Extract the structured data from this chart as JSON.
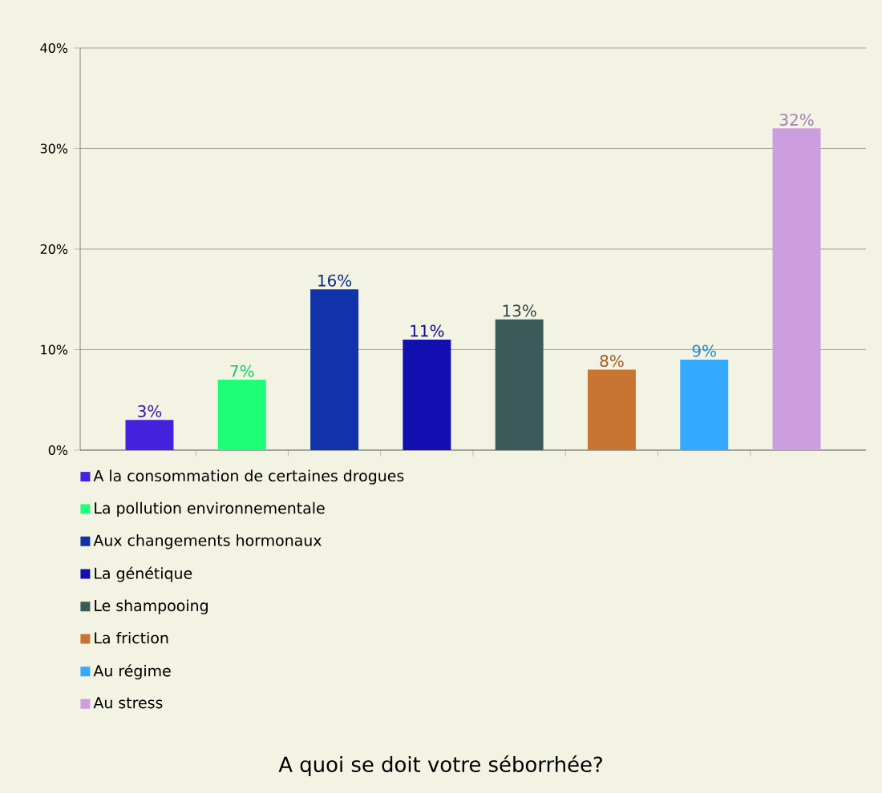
{
  "chart_data": {
    "type": "bar",
    "title": "A quoi se doit votre séborrhée?",
    "categories": [
      null,
      null,
      null,
      null,
      null,
      null,
      null,
      null
    ],
    "series": [
      {
        "name": "A la consommation de certaines drogues",
        "color": "#4422dd",
        "values": [
          3,
          null,
          null,
          null,
          null,
          null,
          null,
          null
        ],
        "value_labels": [
          "3%",
          null,
          null,
          null,
          null,
          null,
          null,
          null
        ]
      },
      {
        "name": "La pollution environnementale",
        "color": "#1cff77",
        "values": [
          null,
          7,
          null,
          null,
          null,
          null,
          null,
          null
        ],
        "value_labels": [
          null,
          "7%",
          null,
          null,
          null,
          null,
          null,
          null
        ]
      },
      {
        "name": "Aux changements hormonaux",
        "color": "#1133aa",
        "values": [
          null,
          null,
          16,
          null,
          null,
          null,
          null,
          null
        ],
        "value_labels": [
          null,
          null,
          "16%",
          null,
          null,
          null,
          null,
          null
        ]
      },
      {
        "name": "La génétique",
        "color": "#110fb0",
        "values": [
          null,
          null,
          null,
          11,
          null,
          null,
          null,
          null
        ],
        "value_labels": [
          null,
          null,
          null,
          "11%",
          null,
          null,
          null,
          null
        ]
      },
      {
        "name": "Le shampooing",
        "color": "#3d5a5a",
        "values": [
          null,
          null,
          null,
          null,
          13,
          null,
          null,
          null
        ],
        "value_labels": [
          null,
          null,
          null,
          null,
          "13%",
          null,
          null,
          null
        ]
      },
      {
        "name": "La friction",
        "color": "#c87533",
        "values": [
          null,
          null,
          null,
          null,
          null,
          8,
          null,
          null
        ],
        "value_labels": [
          null,
          null,
          null,
          null,
          null,
          "8%",
          null,
          null
        ]
      },
      {
        "name": "Au régime",
        "color": "#33aaff",
        "values": [
          null,
          null,
          null,
          null,
          null,
          null,
          9,
          null
        ],
        "value_labels": [
          null,
          null,
          null,
          null,
          null,
          null,
          "9%",
          null
        ]
      },
      {
        "name": "Au stress",
        "color": "#cc9ee0",
        "values": [
          null,
          null,
          null,
          null,
          null,
          null,
          null,
          32
        ],
        "value_labels": [
          null,
          null,
          null,
          null,
          null,
          null,
          null,
          "32%"
        ]
      }
    ],
    "ylim": [
      0,
      40
    ],
    "yticks": [
      {
        "value": 0,
        "label": "0%"
      },
      {
        "value": 10,
        "label": "10%"
      },
      {
        "value": 20,
        "label": "20%"
      },
      {
        "value": 30,
        "label": "30%"
      },
      {
        "value": 40,
        "label": "40%"
      }
    ],
    "grid": "y",
    "legend": "bottom",
    "tick_labels": "y"
  }
}
